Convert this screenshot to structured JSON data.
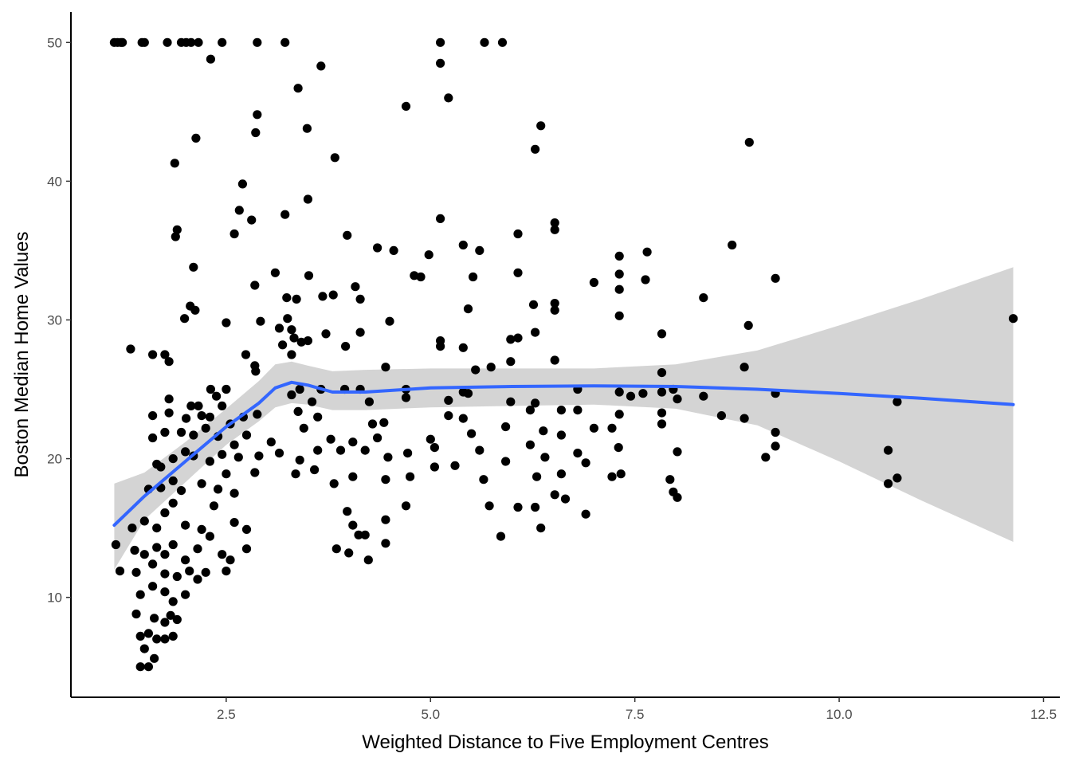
{
  "chart_data": {
    "type": "scatter",
    "title": "",
    "xlabel": "Weighted Distance to Five Employment Centres",
    "ylabel": "Boston Median Home Values",
    "xlim": [
      0.6,
      12.7
    ],
    "ylim": [
      2.8,
      52.2
    ],
    "x_ticks": [
      2.5,
      5.0,
      7.5,
      10.0,
      12.5
    ],
    "x_tick_labels": [
      "2.5",
      "5.0",
      "7.5",
      "10.0",
      "12.5"
    ],
    "y_ticks": [
      10,
      20,
      30,
      40,
      50
    ],
    "y_tick_labels": [
      "10",
      "20",
      "30",
      "40",
      "50"
    ],
    "grid": false,
    "colors": {
      "points": "#000000",
      "smooth_line": "#3366FF",
      "confidence_band": "#cccccc"
    },
    "points": [
      [
        1.13,
        50
      ],
      [
        1.17,
        50
      ],
      [
        1.21,
        50
      ],
      [
        1.23,
        50
      ],
      [
        1.47,
        50
      ],
      [
        1.5,
        50
      ],
      [
        1.78,
        50
      ],
      [
        1.95,
        50
      ],
      [
        2.01,
        50
      ],
      [
        2.07,
        50
      ],
      [
        2.16,
        50
      ],
      [
        2.45,
        50
      ],
      [
        2.88,
        50
      ],
      [
        3.22,
        50
      ],
      [
        5.12,
        50
      ],
      [
        5.66,
        50
      ],
      [
        5.88,
        50
      ],
      [
        2.31,
        48.8
      ],
      [
        5.12,
        48.5
      ],
      [
        3.66,
        48.3
      ],
      [
        5.22,
        46
      ],
      [
        3.38,
        46.7
      ],
      [
        4.7,
        45.4
      ],
      [
        2.88,
        44.8
      ],
      [
        6.35,
        44
      ],
      [
        3.49,
        43.8
      ],
      [
        2.86,
        43.5
      ],
      [
        2.13,
        43.1
      ],
      [
        8.9,
        42.8
      ],
      [
        6.28,
        42.3
      ],
      [
        1.87,
        41.3
      ],
      [
        3.83,
        41.7
      ],
      [
        2.7,
        39.8
      ],
      [
        3.5,
        38.7
      ],
      [
        2.66,
        37.9
      ],
      [
        2.81,
        37.2
      ],
      [
        3.22,
        37.6
      ],
      [
        5.12,
        37.3
      ],
      [
        6.52,
        37
      ],
      [
        6.52,
        36.5
      ],
      [
        1.9,
        36.5
      ],
      [
        1.88,
        36
      ],
      [
        2.6,
        36.2
      ],
      [
        6.07,
        36.2
      ],
      [
        3.98,
        36.1
      ],
      [
        4.35,
        35.2
      ],
      [
        4.55,
        35
      ],
      [
        5.4,
        35.4
      ],
      [
        5.6,
        35
      ],
      [
        7.65,
        34.9
      ],
      [
        8.69,
        35.4
      ],
      [
        4.98,
        34.7
      ],
      [
        7.31,
        34.6
      ],
      [
        2.1,
        33.8
      ],
      [
        3.1,
        33.4
      ],
      [
        3.51,
        33.2
      ],
      [
        4.8,
        33.2
      ],
      [
        4.88,
        33.1
      ],
      [
        5.52,
        33.1
      ],
      [
        6.07,
        33.4
      ],
      [
        7.31,
        33.3
      ],
      [
        7.63,
        32.9
      ],
      [
        9.22,
        33
      ],
      [
        7.0,
        32.7
      ],
      [
        7.31,
        32.2
      ],
      [
        4.08,
        32.4
      ],
      [
        2.85,
        32.5
      ],
      [
        3.68,
        31.7
      ],
      [
        3.81,
        31.8
      ],
      [
        3.24,
        31.6
      ],
      [
        3.36,
        31.5
      ],
      [
        4.14,
        31.5
      ],
      [
        6.26,
        31.1
      ],
      [
        6.52,
        31.2
      ],
      [
        8.34,
        31.6
      ],
      [
        2.06,
        31
      ],
      [
        2.12,
        30.7
      ],
      [
        5.46,
        30.8
      ],
      [
        6.52,
        30.7
      ],
      [
        1.99,
        30.1
      ],
      [
        2.5,
        29.8
      ],
      [
        2.92,
        29.9
      ],
      [
        3.25,
        30.1
      ],
      [
        4.5,
        29.9
      ],
      [
        7.31,
        30.3
      ],
      [
        8.89,
        29.6
      ],
      [
        12.13,
        30.1
      ],
      [
        3.15,
        29.4
      ],
      [
        3.3,
        29.3
      ],
      [
        3.72,
        29
      ],
      [
        4.14,
        29.1
      ],
      [
        6.28,
        29.1
      ],
      [
        7.83,
        29
      ],
      [
        3.42,
        28.4
      ],
      [
        3.5,
        28.5
      ],
      [
        5.12,
        28.5
      ],
      [
        5.98,
        28.6
      ],
      [
        6.07,
        28.7
      ],
      [
        1.33,
        27.9
      ],
      [
        1.6,
        27.5
      ],
      [
        1.75,
        27.5
      ],
      [
        1.8,
        27
      ],
      [
        2.74,
        27.5
      ],
      [
        2.85,
        26.7
      ],
      [
        3.19,
        28.2
      ],
      [
        3.33,
        28.7
      ],
      [
        3.3,
        27.5
      ],
      [
        3.96,
        28.1
      ],
      [
        5.12,
        28.1
      ],
      [
        5.4,
        28
      ],
      [
        5.98,
        27
      ],
      [
        6.52,
        27.1
      ],
      [
        4.45,
        26.6
      ],
      [
        5.55,
        26.4
      ],
      [
        5.74,
        26.6
      ],
      [
        7.83,
        26.2
      ],
      [
        8.84,
        26.6
      ],
      [
        2.31,
        25
      ],
      [
        2.5,
        25
      ],
      [
        2.86,
        26.3
      ],
      [
        3.4,
        25
      ],
      [
        3.66,
        25
      ],
      [
        3.95,
        25
      ],
      [
        4.14,
        25
      ],
      [
        4.7,
        25
      ],
      [
        5.4,
        24.8
      ],
      [
        5.46,
        24.7
      ],
      [
        6.8,
        25
      ],
      [
        7.31,
        24.8
      ],
      [
        7.45,
        24.5
      ],
      [
        7.83,
        24.8
      ],
      [
        7.97,
        25
      ],
      [
        8.34,
        24.5
      ],
      [
        9.22,
        24.7
      ],
      [
        10.71,
        24.1
      ],
      [
        1.8,
        24.3
      ],
      [
        2.07,
        23.8
      ],
      [
        2.16,
        23.8
      ],
      [
        2.38,
        24.5
      ],
      [
        2.45,
        23.8
      ],
      [
        3.3,
        24.6
      ],
      [
        3.55,
        24.1
      ],
      [
        4.25,
        24.1
      ],
      [
        4.7,
        24.4
      ],
      [
        5.22,
        24.2
      ],
      [
        5.98,
        24.1
      ],
      [
        6.28,
        24
      ],
      [
        7.6,
        24.7
      ],
      [
        8.02,
        24.3
      ],
      [
        1.6,
        23.1
      ],
      [
        1.8,
        23.3
      ],
      [
        2.01,
        22.9
      ],
      [
        2.2,
        23.1
      ],
      [
        2.3,
        23
      ],
      [
        2.55,
        22.5
      ],
      [
        2.71,
        23
      ],
      [
        2.88,
        23.2
      ],
      [
        3.38,
        23.4
      ],
      [
        3.62,
        23
      ],
      [
        4.29,
        22.5
      ],
      [
        4.43,
        22.6
      ],
      [
        5.22,
        23.1
      ],
      [
        5.4,
        22.9
      ],
      [
        6.22,
        23.5
      ],
      [
        6.6,
        23.5
      ],
      [
        6.8,
        23.5
      ],
      [
        7.31,
        23.2
      ],
      [
        7.83,
        23.3
      ],
      [
        8.56,
        23.1
      ],
      [
        8.84,
        22.9
      ],
      [
        1.6,
        21.5
      ],
      [
        1.75,
        21.9
      ],
      [
        1.95,
        21.9
      ],
      [
        2.1,
        21.7
      ],
      [
        2.25,
        22.2
      ],
      [
        2.4,
        21.6
      ],
      [
        2.6,
        21
      ],
      [
        2.75,
        21.7
      ],
      [
        3.05,
        21.2
      ],
      [
        3.45,
        22.2
      ],
      [
        3.78,
        21.4
      ],
      [
        4.05,
        21.2
      ],
      [
        4.35,
        21.5
      ],
      [
        5.0,
        21.4
      ],
      [
        5.5,
        21.8
      ],
      [
        5.92,
        22.3
      ],
      [
        6.38,
        22
      ],
      [
        6.6,
        21.7
      ],
      [
        7.0,
        22.2
      ],
      [
        7.22,
        22.2
      ],
      [
        7.83,
        22.5
      ],
      [
        9.22,
        21.9
      ],
      [
        1.65,
        19.6
      ],
      [
        1.7,
        19.4
      ],
      [
        1.85,
        20
      ],
      [
        2.0,
        20.5
      ],
      [
        2.1,
        20.2
      ],
      [
        2.3,
        19.8
      ],
      [
        2.45,
        20.3
      ],
      [
        2.65,
        20.1
      ],
      [
        2.9,
        20.2
      ],
      [
        3.15,
        20.4
      ],
      [
        3.4,
        19.9
      ],
      [
        3.62,
        20.6
      ],
      [
        3.9,
        20.6
      ],
      [
        4.2,
        20.6
      ],
      [
        4.48,
        20.1
      ],
      [
        4.72,
        20.4
      ],
      [
        5.05,
        20.8
      ],
      [
        5.6,
        20.6
      ],
      [
        6.22,
        21
      ],
      [
        6.4,
        20.1
      ],
      [
        6.8,
        20.4
      ],
      [
        7.3,
        20.8
      ],
      [
        8.02,
        20.5
      ],
      [
        9.22,
        20.9
      ],
      [
        9.1,
        20.1
      ],
      [
        10.6,
        20.6
      ],
      [
        1.55,
        17.8
      ],
      [
        1.7,
        17.9
      ],
      [
        1.85,
        18.4
      ],
      [
        1.95,
        17.7
      ],
      [
        2.2,
        18.2
      ],
      [
        2.4,
        17.8
      ],
      [
        2.5,
        18.9
      ],
      [
        2.6,
        17.5
      ],
      [
        2.85,
        19
      ],
      [
        3.35,
        18.9
      ],
      [
        3.58,
        19.2
      ],
      [
        3.82,
        18.2
      ],
      [
        4.05,
        18.7
      ],
      [
        4.45,
        18.5
      ],
      [
        4.75,
        18.7
      ],
      [
        5.05,
        19.4
      ],
      [
        5.3,
        19.5
      ],
      [
        5.65,
        18.5
      ],
      [
        5.92,
        19.8
      ],
      [
        6.3,
        18.7
      ],
      [
        6.6,
        18.9
      ],
      [
        6.9,
        19.7
      ],
      [
        7.22,
        18.7
      ],
      [
        7.33,
        18.9
      ],
      [
        7.93,
        18.5
      ],
      [
        10.6,
        18.2
      ],
      [
        10.71,
        18.6
      ],
      [
        1.35,
        15
      ],
      [
        1.5,
        15.5
      ],
      [
        1.65,
        15
      ],
      [
        1.75,
        16.1
      ],
      [
        1.85,
        16.8
      ],
      [
        2.0,
        15.2
      ],
      [
        2.2,
        14.9
      ],
      [
        2.35,
        16.6
      ],
      [
        2.6,
        15.4
      ],
      [
        2.75,
        14.9
      ],
      [
        3.98,
        16.2
      ],
      [
        4.05,
        15.2
      ],
      [
        4.45,
        15.6
      ],
      [
        4.7,
        16.6
      ],
      [
        5.72,
        16.6
      ],
      [
        6.07,
        16.5
      ],
      [
        6.28,
        16.5
      ],
      [
        6.52,
        17.4
      ],
      [
        6.65,
        17.1
      ],
      [
        6.9,
        16
      ],
      [
        7.97,
        17.6
      ],
      [
        8.02,
        17.2
      ],
      [
        1.15,
        13.8
      ],
      [
        1.38,
        13.4
      ],
      [
        1.5,
        13.1
      ],
      [
        1.65,
        13.6
      ],
      [
        1.75,
        13.1
      ],
      [
        1.85,
        13.8
      ],
      [
        2.0,
        12.7
      ],
      [
        2.15,
        13.5
      ],
      [
        2.3,
        14.4
      ],
      [
        2.45,
        13.1
      ],
      [
        2.55,
        12.7
      ],
      [
        2.75,
        13.5
      ],
      [
        3.85,
        13.5
      ],
      [
        4.0,
        13.2
      ],
      [
        4.12,
        14.5
      ],
      [
        4.2,
        14.5
      ],
      [
        4.24,
        12.7
      ],
      [
        4.45,
        13.9
      ],
      [
        5.86,
        14.4
      ],
      [
        6.35,
        15
      ],
      [
        1.2,
        11.9
      ],
      [
        1.4,
        11.8
      ],
      [
        1.6,
        12.4
      ],
      [
        1.75,
        11.7
      ],
      [
        1.9,
        11.5
      ],
      [
        2.05,
        11.9
      ],
      [
        2.15,
        11.3
      ],
      [
        2.25,
        11.8
      ],
      [
        2.5,
        11.9
      ],
      [
        1.45,
        10.2
      ],
      [
        1.6,
        10.8
      ],
      [
        1.75,
        10.4
      ],
      [
        1.85,
        9.7
      ],
      [
        2.0,
        10.2
      ],
      [
        1.4,
        8.8
      ],
      [
        1.62,
        8.5
      ],
      [
        1.75,
        8.2
      ],
      [
        1.82,
        8.7
      ],
      [
        1.9,
        8.4
      ],
      [
        1.45,
        7.2
      ],
      [
        1.55,
        7.4
      ],
      [
        1.65,
        7.0
      ],
      [
        1.75,
        7.0
      ],
      [
        1.85,
        7.2
      ],
      [
        1.45,
        5.0
      ],
      [
        1.55,
        5.0
      ],
      [
        1.5,
        6.3
      ],
      [
        1.62,
        5.6
      ]
    ],
    "smooth_line": [
      [
        1.13,
        15.2
      ],
      [
        1.5,
        17.3
      ],
      [
        2.0,
        19.8
      ],
      [
        2.5,
        22.3
      ],
      [
        2.9,
        24.0
      ],
      [
        3.1,
        25.1
      ],
      [
        3.3,
        25.5
      ],
      [
        3.5,
        25.3
      ],
      [
        3.8,
        24.8
      ],
      [
        4.2,
        24.8
      ],
      [
        5.0,
        25.1
      ],
      [
        6.0,
        25.2
      ],
      [
        7.0,
        25.25
      ],
      [
        8.0,
        25.2
      ],
      [
        9.0,
        25.0
      ],
      [
        10.0,
        24.7
      ],
      [
        11.0,
        24.35
      ],
      [
        12.13,
        23.9
      ]
    ],
    "confidence_band_upper": [
      [
        1.13,
        18.2
      ],
      [
        1.5,
        19.0
      ],
      [
        2.0,
        21.2
      ],
      [
        2.5,
        23.6
      ],
      [
        2.9,
        25.6
      ],
      [
        3.1,
        26.8
      ],
      [
        3.3,
        27.0
      ],
      [
        3.5,
        26.7
      ],
      [
        3.8,
        26.3
      ],
      [
        4.2,
        26.4
      ],
      [
        5.0,
        26.5
      ],
      [
        6.0,
        26.5
      ],
      [
        7.0,
        26.5
      ],
      [
        8.0,
        26.8
      ],
      [
        9.0,
        27.8
      ],
      [
        10.0,
        29.6
      ],
      [
        11.0,
        31.5
      ],
      [
        12.13,
        33.8
      ]
    ],
    "confidence_band_lower": [
      [
        1.13,
        12.0
      ],
      [
        1.5,
        15.6
      ],
      [
        2.0,
        18.3
      ],
      [
        2.5,
        21.0
      ],
      [
        2.9,
        22.7
      ],
      [
        3.1,
        23.7
      ],
      [
        3.3,
        24.0
      ],
      [
        3.5,
        23.9
      ],
      [
        3.8,
        23.5
      ],
      [
        4.2,
        23.5
      ],
      [
        5.0,
        23.7
      ],
      [
        6.0,
        23.8
      ],
      [
        7.0,
        23.9
      ],
      [
        8.0,
        23.6
      ],
      [
        9.0,
        22.4
      ],
      [
        10.0,
        19.8
      ],
      [
        11.0,
        17.0
      ],
      [
        12.13,
        14.0
      ]
    ]
  }
}
